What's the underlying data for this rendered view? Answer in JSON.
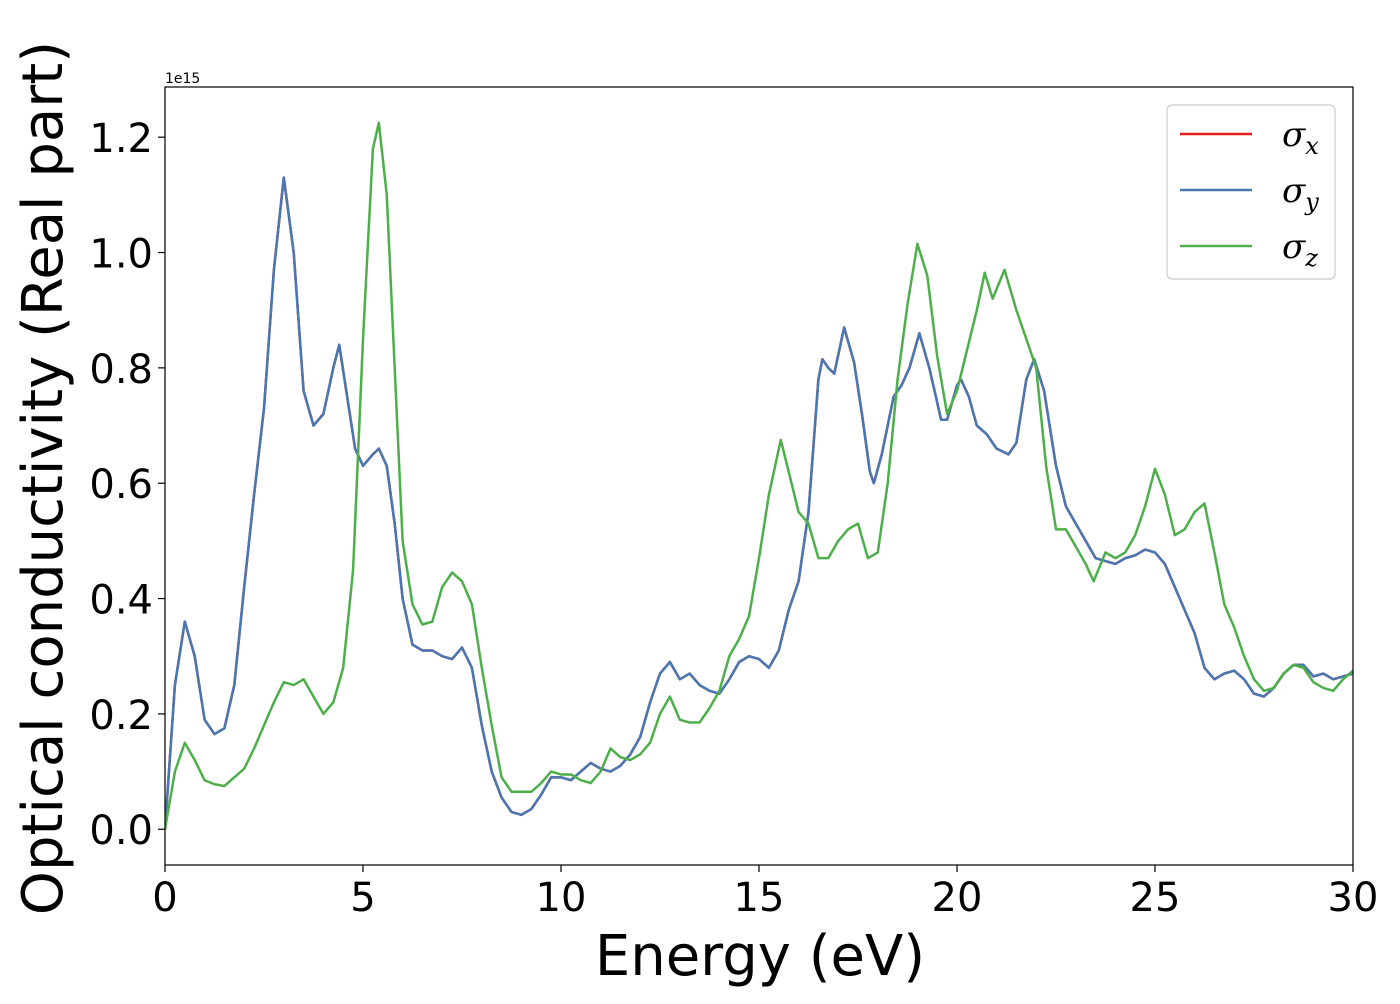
{
  "chart_data": {
    "type": "line",
    "x_label": "Energy (eV)",
    "y_label": "Optical conductivity (Real part)",
    "y_offset_label": "1e15",
    "xlim": [
      0,
      30
    ],
    "ylim": [
      -0.062,
      1.287
    ],
    "xticks": [
      0,
      5,
      10,
      15,
      20,
      25,
      30
    ],
    "yticks": [
      {
        "value": 0,
        "label": "0.0"
      },
      0.2,
      0.4,
      0.6,
      0.8,
      {
        "value": 1,
        "label": "1.0"
      },
      1.2
    ],
    "grid": false,
    "legend": "upper right",
    "series": [
      {
        "name": "σx",
        "color": "#e41a1c",
        "x": [
          0,
          0.25,
          0.5,
          0.75,
          1,
          1.25,
          1.5,
          1.75,
          2,
          2.25,
          2.5,
          2.75,
          3,
          3.25,
          3.5,
          3.75,
          4,
          4.25,
          4.4,
          4.6,
          4.8,
          5,
          5.25,
          5.4,
          5.6,
          5.8,
          6,
          6.25,
          6.5,
          6.75,
          7,
          7.25,
          7.5,
          7.75,
          8,
          8.25,
          8.5,
          8.75,
          9,
          9.25,
          9.5,
          9.75,
          10,
          10.25,
          10.5,
          10.75,
          11,
          11.25,
          11.5,
          11.75,
          12,
          12.25,
          12.5,
          12.75,
          13,
          13.25,
          13.5,
          13.75,
          14,
          14.25,
          14.5,
          14.75,
          15,
          15.25,
          15.5,
          15.75,
          16,
          16.25,
          16.5,
          16.6,
          16.75,
          16.9,
          17.15,
          17.4,
          17.6,
          17.8,
          17.9,
          18.1,
          18.4,
          18.6,
          18.8,
          19.05,
          19.3,
          19.6,
          19.75,
          20,
          20.1,
          20.3,
          20.5,
          20.75,
          21,
          21.3,
          21.5,
          21.75,
          21.95,
          22.2,
          22.5,
          22.75,
          23,
          23.25,
          23.5,
          23.75,
          24,
          24.25,
          24.5,
          24.75,
          25,
          25.25,
          25.5,
          25.75,
          26,
          26.25,
          26.5,
          26.75,
          27,
          27.25,
          27.5,
          27.75,
          28,
          28.25,
          28.5,
          28.75,
          29,
          29.25,
          29.5,
          29.75,
          30
        ],
        "values": [
          0,
          0.25,
          0.36,
          0.3,
          0.19,
          0.165,
          0.175,
          0.25,
          0.42,
          0.58,
          0.73,
          0.97,
          1.13,
          1.0,
          0.76,
          0.7,
          0.72,
          0.8,
          0.84,
          0.75,
          0.66,
          0.63,
          0.65,
          0.66,
          0.63,
          0.53,
          0.4,
          0.32,
          0.31,
          0.31,
          0.3,
          0.295,
          0.315,
          0.28,
          0.18,
          0.1,
          0.055,
          0.03,
          0.025,
          0.035,
          0.06,
          0.09,
          0.09,
          0.085,
          0.1,
          0.115,
          0.105,
          0.1,
          0.11,
          0.13,
          0.16,
          0.22,
          0.27,
          0.29,
          0.26,
          0.27,
          0.25,
          0.24,
          0.235,
          0.26,
          0.29,
          0.3,
          0.295,
          0.28,
          0.31,
          0.38,
          0.43,
          0.55,
          0.78,
          0.815,
          0.8,
          0.79,
          0.87,
          0.81,
          0.72,
          0.62,
          0.6,
          0.65,
          0.75,
          0.77,
          0.8,
          0.86,
          0.8,
          0.71,
          0.71,
          0.77,
          0.78,
          0.75,
          0.7,
          0.685,
          0.66,
          0.65,
          0.67,
          0.78,
          0.815,
          0.76,
          0.63,
          0.56,
          0.53,
          0.5,
          0.47,
          0.465,
          0.46,
          0.47,
          0.475,
          0.485,
          0.48,
          0.46,
          0.42,
          0.38,
          0.34,
          0.28,
          0.26,
          0.27,
          0.275,
          0.26,
          0.235,
          0.23,
          0.245,
          0.27,
          0.285,
          0.285,
          0.265,
          0.27,
          0.26,
          0.265,
          0.27
        ]
      },
      {
        "name": "σy",
        "color": "#4878b4",
        "x": [
          0,
          0.25,
          0.5,
          0.75,
          1,
          1.25,
          1.5,
          1.75,
          2,
          2.25,
          2.5,
          2.75,
          3,
          3.25,
          3.5,
          3.75,
          4,
          4.25,
          4.4,
          4.6,
          4.8,
          5,
          5.25,
          5.4,
          5.6,
          5.8,
          6,
          6.25,
          6.5,
          6.75,
          7,
          7.25,
          7.5,
          7.75,
          8,
          8.25,
          8.5,
          8.75,
          9,
          9.25,
          9.5,
          9.75,
          10,
          10.25,
          10.5,
          10.75,
          11,
          11.25,
          11.5,
          11.75,
          12,
          12.25,
          12.5,
          12.75,
          13,
          13.25,
          13.5,
          13.75,
          14,
          14.25,
          14.5,
          14.75,
          15,
          15.25,
          15.5,
          15.75,
          16,
          16.25,
          16.5,
          16.6,
          16.75,
          16.9,
          17.15,
          17.4,
          17.6,
          17.8,
          17.9,
          18.1,
          18.4,
          18.6,
          18.8,
          19.05,
          19.3,
          19.6,
          19.75,
          20,
          20.1,
          20.3,
          20.5,
          20.75,
          21,
          21.3,
          21.5,
          21.75,
          21.95,
          22.2,
          22.5,
          22.75,
          23,
          23.25,
          23.5,
          23.75,
          24,
          24.25,
          24.5,
          24.75,
          25,
          25.25,
          25.5,
          25.75,
          26,
          26.25,
          26.5,
          26.75,
          27,
          27.25,
          27.5,
          27.75,
          28,
          28.25,
          28.5,
          28.75,
          29,
          29.25,
          29.5,
          29.75,
          30
        ],
        "values": [
          0,
          0.25,
          0.36,
          0.3,
          0.19,
          0.165,
          0.175,
          0.25,
          0.42,
          0.58,
          0.73,
          0.97,
          1.13,
          1.0,
          0.76,
          0.7,
          0.72,
          0.8,
          0.84,
          0.75,
          0.66,
          0.63,
          0.65,
          0.66,
          0.63,
          0.53,
          0.4,
          0.32,
          0.31,
          0.31,
          0.3,
          0.295,
          0.315,
          0.28,
          0.18,
          0.1,
          0.055,
          0.03,
          0.025,
          0.035,
          0.06,
          0.09,
          0.09,
          0.085,
          0.1,
          0.115,
          0.105,
          0.1,
          0.11,
          0.13,
          0.16,
          0.22,
          0.27,
          0.29,
          0.26,
          0.27,
          0.25,
          0.24,
          0.235,
          0.26,
          0.29,
          0.3,
          0.295,
          0.28,
          0.31,
          0.38,
          0.43,
          0.55,
          0.78,
          0.815,
          0.8,
          0.79,
          0.87,
          0.81,
          0.72,
          0.62,
          0.6,
          0.65,
          0.75,
          0.77,
          0.8,
          0.86,
          0.8,
          0.71,
          0.71,
          0.77,
          0.78,
          0.75,
          0.7,
          0.685,
          0.66,
          0.65,
          0.67,
          0.78,
          0.815,
          0.76,
          0.63,
          0.56,
          0.53,
          0.5,
          0.47,
          0.465,
          0.46,
          0.47,
          0.475,
          0.485,
          0.48,
          0.46,
          0.42,
          0.38,
          0.34,
          0.28,
          0.26,
          0.27,
          0.275,
          0.26,
          0.235,
          0.23,
          0.245,
          0.27,
          0.285,
          0.285,
          0.265,
          0.27,
          0.26,
          0.265,
          0.27
        ]
      },
      {
        "name": "σz",
        "color": "#4daf4a",
        "x": [
          0,
          0.25,
          0.5,
          0.75,
          1,
          1.25,
          1.5,
          1.75,
          2,
          2.25,
          2.5,
          2.75,
          3,
          3.25,
          3.5,
          3.75,
          4,
          4.25,
          4.5,
          4.75,
          5,
          5.25,
          5.4,
          5.6,
          5.8,
          6,
          6.25,
          6.5,
          6.75,
          7,
          7.25,
          7.5,
          7.75,
          8,
          8.25,
          8.5,
          8.75,
          9,
          9.25,
          9.5,
          9.75,
          10,
          10.25,
          10.5,
          10.75,
          11,
          11.25,
          11.5,
          11.75,
          12,
          12.25,
          12.5,
          12.75,
          13,
          13.25,
          13.5,
          13.75,
          14,
          14.25,
          14.5,
          14.75,
          15,
          15.25,
          15.55,
          15.75,
          16,
          16.25,
          16.5,
          16.75,
          17,
          17.25,
          17.5,
          17.75,
          18,
          18.25,
          18.5,
          18.75,
          19,
          19.25,
          19.5,
          19.75,
          20,
          20.25,
          20.5,
          20.7,
          20.9,
          21.2,
          21.5,
          21.75,
          22,
          22.25,
          22.5,
          22.75,
          23,
          23.25,
          23.45,
          23.75,
          24,
          24.25,
          24.5,
          24.75,
          25,
          25.25,
          25.5,
          25.75,
          26,
          26.25,
          26.5,
          26.75,
          27,
          27.25,
          27.5,
          27.75,
          28,
          28.25,
          28.5,
          28.75,
          29,
          29.25,
          29.5,
          29.75,
          30
        ],
        "values": [
          0,
          0.1,
          0.15,
          0.12,
          0.085,
          0.078,
          0.075,
          0.09,
          0.105,
          0.14,
          0.18,
          0.22,
          0.255,
          0.25,
          0.26,
          0.23,
          0.2,
          0.22,
          0.28,
          0.45,
          0.85,
          1.18,
          1.225,
          1.1,
          0.8,
          0.5,
          0.39,
          0.355,
          0.36,
          0.42,
          0.445,
          0.43,
          0.39,
          0.28,
          0.18,
          0.09,
          0.065,
          0.065,
          0.065,
          0.08,
          0.1,
          0.095,
          0.095,
          0.085,
          0.08,
          0.1,
          0.14,
          0.125,
          0.12,
          0.13,
          0.15,
          0.2,
          0.23,
          0.19,
          0.185,
          0.185,
          0.21,
          0.24,
          0.3,
          0.33,
          0.37,
          0.47,
          0.58,
          0.675,
          0.62,
          0.55,
          0.53,
          0.47,
          0.47,
          0.5,
          0.52,
          0.53,
          0.47,
          0.48,
          0.6,
          0.78,
          0.91,
          1.015,
          0.96,
          0.82,
          0.72,
          0.76,
          0.83,
          0.9,
          0.965,
          0.92,
          0.97,
          0.9,
          0.85,
          0.8,
          0.63,
          0.52,
          0.52,
          0.49,
          0.46,
          0.43,
          0.48,
          0.47,
          0.48,
          0.51,
          0.56,
          0.625,
          0.58,
          0.51,
          0.52,
          0.55,
          0.565,
          0.48,
          0.39,
          0.35,
          0.3,
          0.26,
          0.24,
          0.245,
          0.27,
          0.285,
          0.28,
          0.255,
          0.245,
          0.24,
          0.26,
          0.275
        ]
      }
    ]
  }
}
